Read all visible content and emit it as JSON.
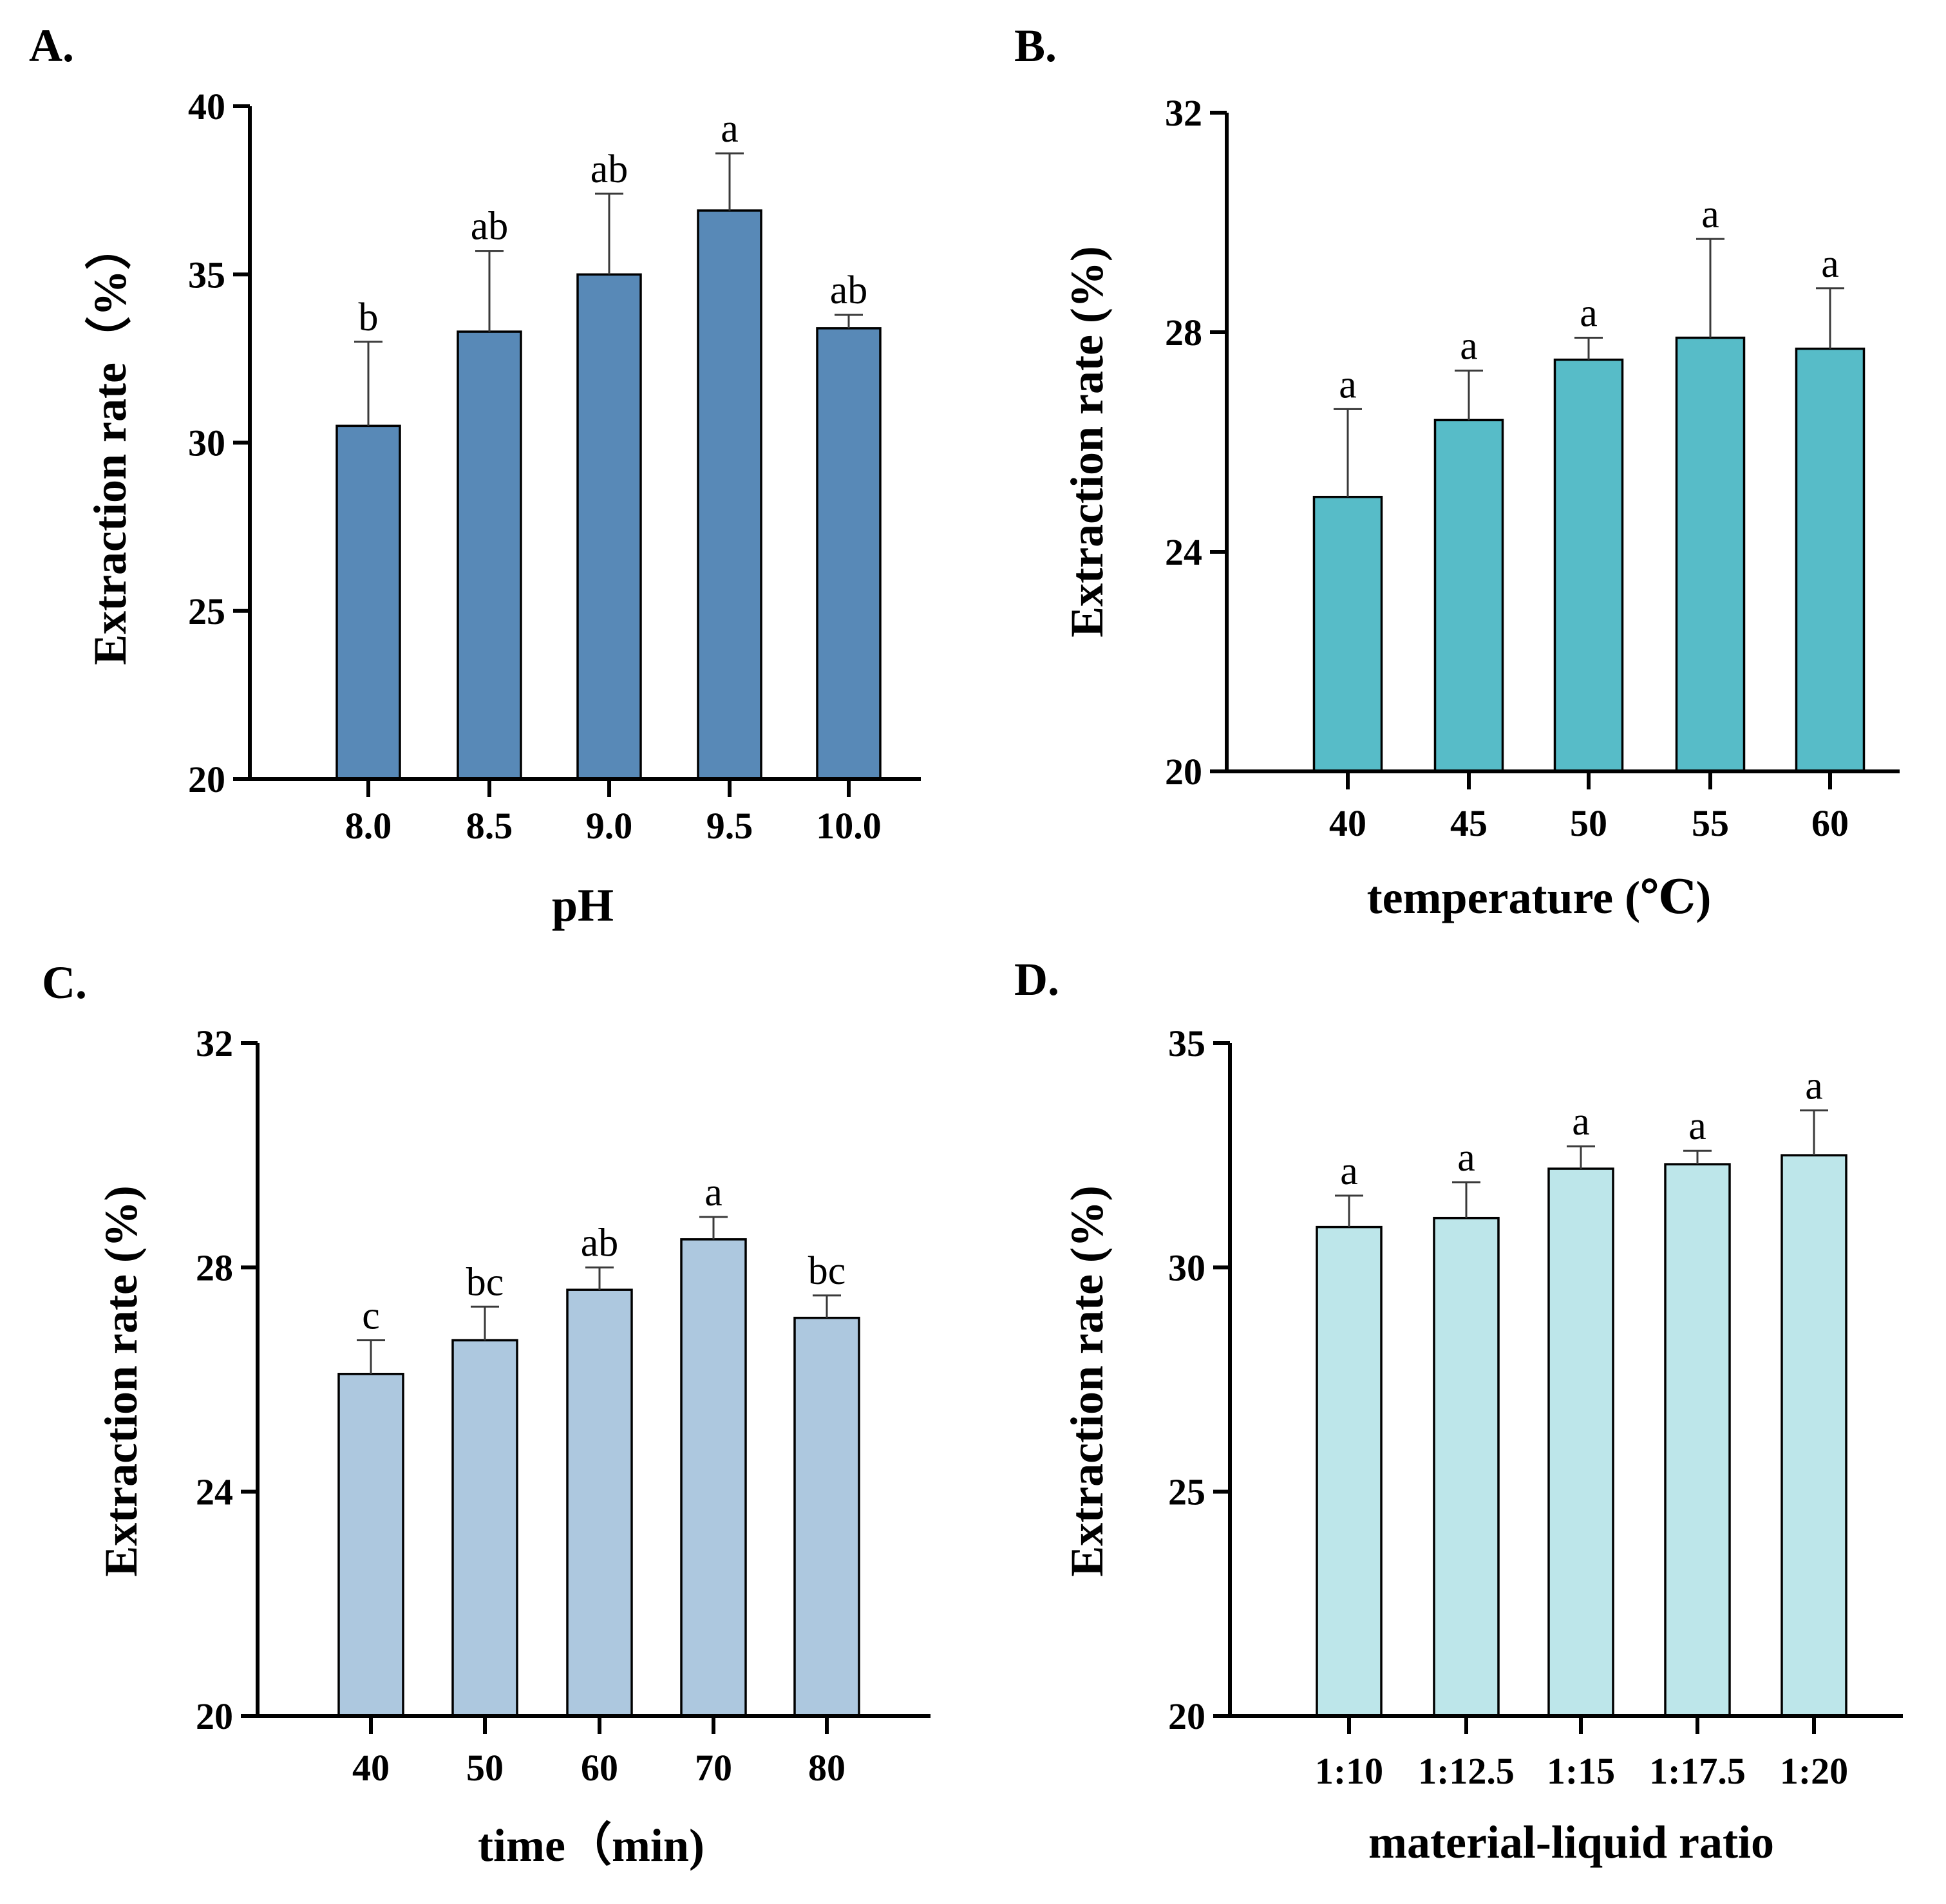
{
  "chart_data": [
    {
      "panel": "A.",
      "type": "bar",
      "xlabel": "pH",
      "ylabel": "Extraction rate（%）",
      "categories": [
        "8.0",
        "8.5",
        "9.0",
        "9.5",
        "10.0"
      ],
      "values": [
        30.5,
        33.3,
        35.0,
        36.9,
        33.4
      ],
      "errors": [
        2.5,
        2.4,
        2.4,
        1.7,
        0.4
      ],
      "significance": [
        "b",
        "ab",
        "ab",
        "a",
        "ab"
      ],
      "ylim": [
        20,
        40
      ],
      "yticks": [
        "20",
        "25",
        "30",
        "35",
        "40"
      ],
      "color": "#5889b7"
    },
    {
      "panel": "B.",
      "type": "bar",
      "xlabel": "temperature (℃)",
      "ylabel": "Extraction rate (%)",
      "categories": [
        "40",
        "45",
        "50",
        "55",
        "60"
      ],
      "values": [
        25.0,
        26.4,
        27.5,
        27.9,
        27.7
      ],
      "errors": [
        1.6,
        0.9,
        0.4,
        1.8,
        1.1
      ],
      "significance": [
        "a",
        "a",
        "a",
        "a",
        "a"
      ],
      "ylim": [
        20,
        32
      ],
      "yticks": [
        "20",
        "24",
        "28",
        "32"
      ],
      "color": "#57bcc8"
    },
    {
      "panel": "C.",
      "type": "bar",
      "xlabel": "time（min)",
      "ylabel": "Extraction rate (%)",
      "categories": [
        "40",
        "50",
        "60",
        "70",
        "80"
      ],
      "values": [
        26.1,
        26.7,
        27.6,
        28.5,
        27.1
      ],
      "errors": [
        0.6,
        0.6,
        0.4,
        0.4,
        0.4
      ],
      "significance": [
        "c",
        "bc",
        "ab",
        "a",
        "bc"
      ],
      "ylim": [
        20,
        32
      ],
      "yticks": [
        "20",
        "24",
        "28",
        "32"
      ],
      "color": "#adc8df"
    },
    {
      "panel": "D.",
      "type": "bar",
      "xlabel": "material-liquid ratio",
      "ylabel": "Extraction rate (%)",
      "categories": [
        "1:10",
        "1:12.5",
        "1:15",
        "1:17.5",
        "1:20"
      ],
      "values": [
        30.9,
        31.1,
        32.2,
        32.3,
        32.5
      ],
      "errors": [
        0.7,
        0.8,
        0.5,
        0.3,
        1.0
      ],
      "significance": [
        "a",
        "a",
        "a",
        "a",
        "a"
      ],
      "ylim": [
        20,
        35
      ],
      "yticks": [
        "20",
        "25",
        "30",
        "35"
      ],
      "color": "#bde6ea"
    }
  ]
}
